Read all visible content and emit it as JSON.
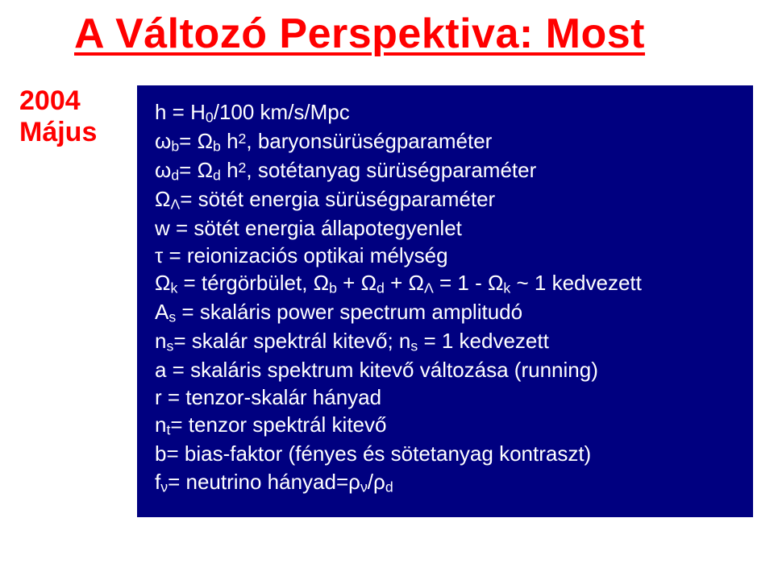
{
  "colors": {
    "title": "#ff0000",
    "sidelabel": "#ff0000",
    "panel_bg": "#000080",
    "panel_text": "#ffffff",
    "page_bg": "#ffffff"
  },
  "typography": {
    "title_fontsize": 52,
    "title_weight": 700,
    "title_underline": true,
    "title_underline_thickness": 4,
    "sidelabel_fontsize": 34,
    "sidelabel_weight": 700,
    "body_fontsize": 26,
    "body_lineheight": 1.32,
    "font_family": "Arial"
  },
  "title": "A Változó Perspektiva: Most",
  "sidelabel": {
    "year": "2004",
    "month": "Május"
  },
  "lines": [
    "h = H<sub class=\"s\">0</sub>/100 km/s/Mpc",
    "ω<sub class=\"s\">b</sub>= Ω<sub class=\"s\">b</sub> h<sup class=\"s\">2</sup>, baryonsürüségparaméter",
    "ω<sub class=\"s\">d</sub>= Ω<sub class=\"s\">d</sub> h<sup class=\"s\">2</sup>, sotétanyag sürüségparaméter",
    "Ω<sub class=\"s\">Λ</sub>= sötét energia sürüségparaméter",
    "w = sötét energia állapotegyenlet",
    "τ = reionizaciós optikai mélység",
    "Ω<sub class=\"s\">k</sub> = térgörbület, Ω<sub class=\"s\">b</sub> + Ω<sub class=\"s\">d</sub> + Ω<sub class=\"s\">Λ</sub> = 1 - Ω<sub class=\"s\">k</sub> ~ 1  kedvezett",
    "A<sub class=\"s\">s</sub> = skaláris power spectrum amplitudó",
    "n<sub class=\"s\">s</sub>= skalár spektrál kitevő;  n<sub class=\"s\">s</sub> = 1 kedvezett",
    "a = skaláris spektrum kitevő változása (running)",
    "r = tenzor-skalár hányad",
    "n<sub class=\"s\">t</sub>= tenzor spektrál kitevő",
    "b= bias-faktor  (fényes és sötetanyag kontraszt)",
    "f<sub class=\"s\">ν</sub>= neutrino hányad=ρ<sub class=\"s\">ν</sub>/ρ<sub class=\"s\">d</sub>"
  ]
}
